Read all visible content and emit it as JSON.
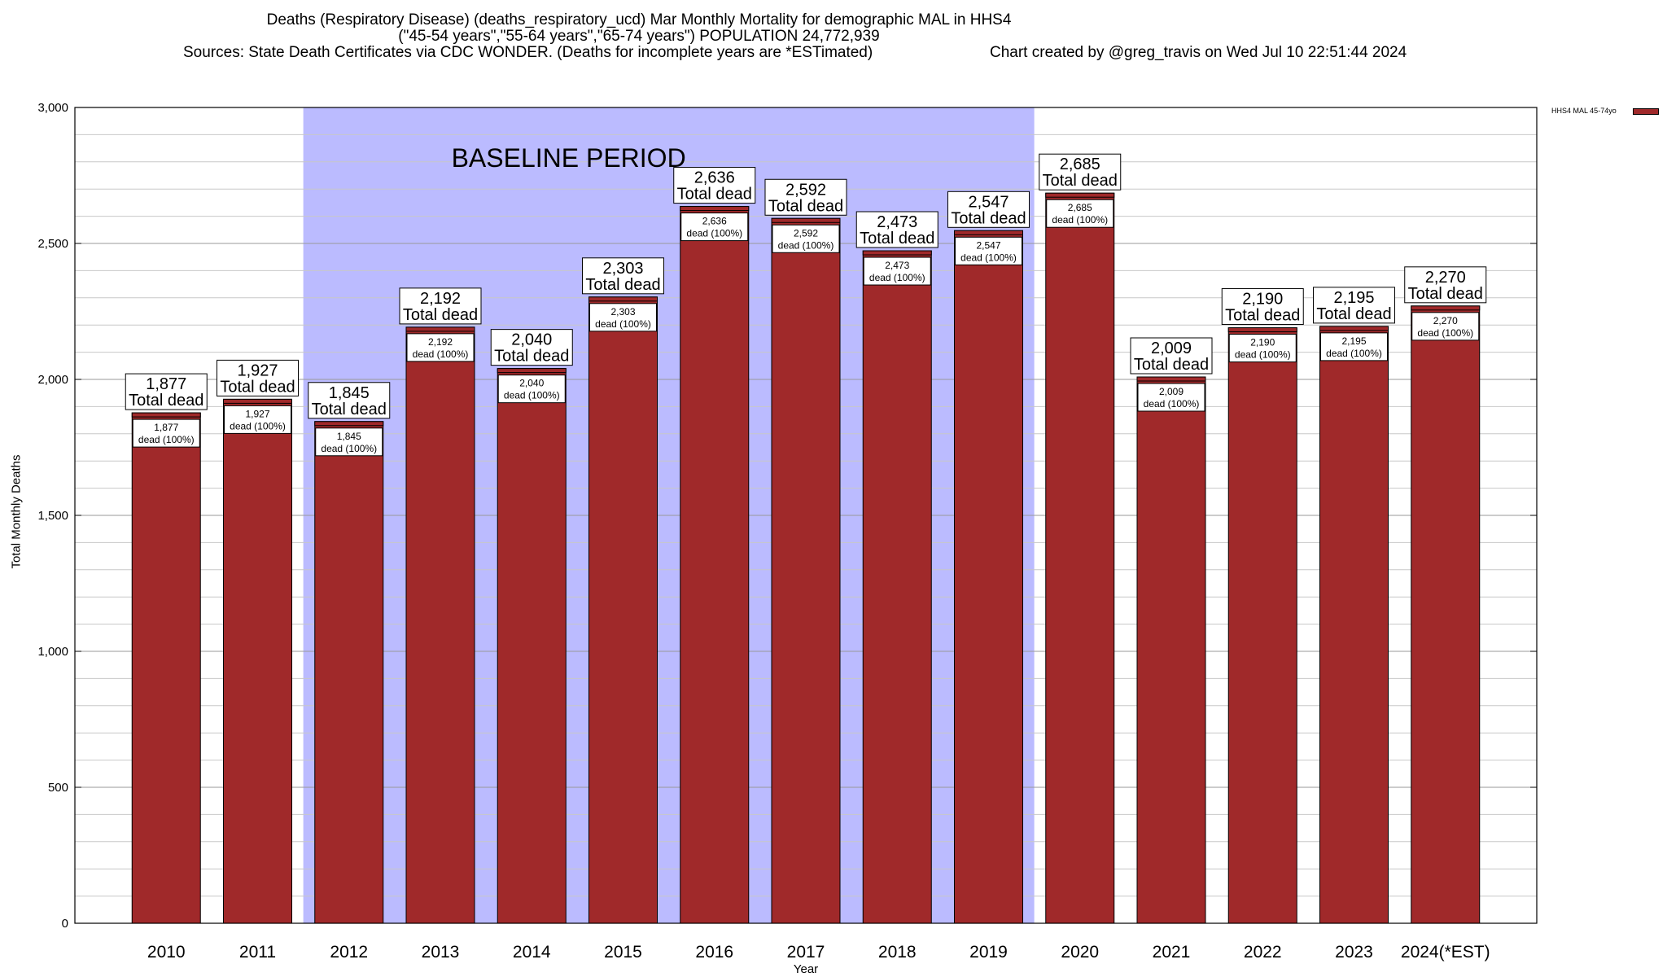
{
  "title_line1": "Deaths (Respiratory Disease) (deaths_respiratory_ucd) Mar Monthly Mortality for demographic MAL in HHS4",
  "title_line2": "(\"45-54 years\",\"55-64 years\",\"65-74 years\") POPULATION 24,772,939",
  "title_line3": "Sources: State Death Certificates via CDC WONDER. (Deaths for incomplete years are *ESTimated)",
  "title_line4": "Chart created by @greg_travis on Wed Jul 10 22:51:44 2024",
  "colors": {
    "bar": "#a0292a",
    "baseline_shade": "#bbbbff"
  },
  "chart_data": {
    "type": "bar",
    "title": "Deaths (Respiratory Disease) (deaths_respiratory_ucd) Mar Monthly Mortality for demographic MAL in HHS4",
    "xlabel": "Year",
    "ylabel": "Total Monthly Deaths",
    "ylim": [
      0,
      3000
    ],
    "yticks": [
      0,
      500,
      1000,
      1500,
      2000,
      2500,
      3000
    ],
    "ytick_labels": [
      "0",
      "500",
      "1,000",
      "1,500",
      "2,000",
      "2,500",
      "3,000"
    ],
    "grid": true,
    "legend_position": "top-right",
    "categories": [
      "2010",
      "2011",
      "2012",
      "2013",
      "2014",
      "2015",
      "2016",
      "2017",
      "2018",
      "2019",
      "2020",
      "2021",
      "2022",
      "2023",
      "2024(*EST)"
    ],
    "series": [
      {
        "name": "HHS4 MAL 45-74yo",
        "values": [
          1877,
          1927,
          1845,
          2192,
          2040,
          2303,
          2636,
          2592,
          2473,
          2547,
          2685,
          2009,
          2190,
          2195,
          2270
        ]
      }
    ],
    "value_labels": [
      "1,877",
      "1,927",
      "1,845",
      "2,192",
      "2,040",
      "2,303",
      "2,636",
      "2,592",
      "2,473",
      "2,547",
      "2,685",
      "2,009",
      "2,190",
      "2,195",
      "2,270"
    ],
    "total_label": "Total dead",
    "dead_label": "dead (100%)",
    "baseline": {
      "label": "BASELINE PERIOD",
      "from": "2012",
      "to": "2019"
    }
  }
}
